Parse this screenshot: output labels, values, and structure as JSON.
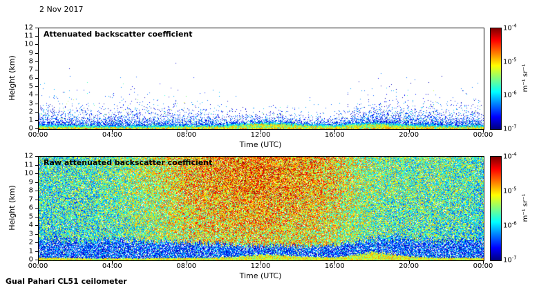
{
  "date_label": "2 Nov 2017",
  "footer_label": "Gual Pahari CL51 ceilometer",
  "colorbar": {
    "unit_label": "m⁻¹ sr⁻¹",
    "tick_base": "10",
    "tick_exponents": [
      "-4",
      "-5",
      "-6",
      "-7"
    ],
    "scale": "log",
    "range_max": "1e-4",
    "range_min": "1e-7",
    "colormap": "jet"
  },
  "chart_data": [
    {
      "type": "heatmap",
      "title": "Attenuated backscatter coefficient",
      "xlabel": "Time (UTC)",
      "ylabel": "Height (km)",
      "x_ticks": [
        "00:00",
        "04:00",
        "08:00",
        "12:00",
        "16:00",
        "20:00",
        "00:00"
      ],
      "y_ticks": [
        "12",
        "11",
        "10",
        "9",
        "8",
        "7",
        "6",
        "5",
        "4",
        "3",
        "2",
        "1",
        "0"
      ],
      "x_range_hours": [
        0,
        24
      ],
      "y_range_km": [
        0,
        12
      ],
      "value_units": "m^-1 sr^-1",
      "value_range": [
        "1e-7",
        "1e-4"
      ],
      "hours": [
        0,
        1,
        2,
        3,
        4,
        5,
        6,
        7,
        8,
        9,
        10,
        11,
        12,
        13,
        14,
        15,
        16,
        17,
        18,
        19,
        20,
        21,
        22,
        23,
        24
      ],
      "aerosol_speckle_top_km": [
        2.2,
        2.1,
        2.0,
        2.0,
        2.1,
        2.0,
        2.0,
        2.1,
        2.0,
        1.8,
        1.5,
        1.3,
        1.2,
        1.3,
        1.2,
        1.2,
        1.3,
        1.8,
        2.2,
        2.3,
        2.2,
        2.1,
        2.0,
        2.1,
        2.1
      ],
      "surface_layer_top_km": [
        0.3,
        0.3,
        0.28,
        0.25,
        0.25,
        0.25,
        0.25,
        0.28,
        0.3,
        0.3,
        0.35,
        0.5,
        0.65,
        0.6,
        0.45,
        0.38,
        0.35,
        0.5,
        0.6,
        0.5,
        0.4,
        0.35,
        0.3,
        0.3,
        0.3
      ]
    },
    {
      "type": "heatmap",
      "title": "Raw attenuated backscatter coefficient",
      "xlabel": "Time (UTC)",
      "ylabel": "Height (km)",
      "x_ticks": [
        "00:00",
        "04:00",
        "08:00",
        "12:00",
        "16:00",
        "20:00",
        "00:00"
      ],
      "y_ticks": [
        "12",
        "11",
        "10",
        "9",
        "8",
        "7",
        "6",
        "5",
        "4",
        "3",
        "2",
        "1",
        "0"
      ],
      "x_range_hours": [
        0,
        24
      ],
      "y_range_km": [
        0,
        12
      ],
      "value_units": "m^-1 sr^-1",
      "value_range": [
        "1e-7",
        "1e-4"
      ],
      "hours": [
        0,
        1,
        2,
        3,
        4,
        5,
        6,
        7,
        8,
        9,
        10,
        11,
        12,
        13,
        14,
        15,
        16,
        17,
        18,
        19,
        20,
        21,
        22,
        23,
        24
      ],
      "noise_intensity_by_hour": [
        0.3,
        0.3,
        0.32,
        0.35,
        0.4,
        0.5,
        0.6,
        0.7,
        0.8,
        0.88,
        0.92,
        0.95,
        0.95,
        0.93,
        0.9,
        0.85,
        0.75,
        0.6,
        0.5,
        0.42,
        0.4,
        0.42,
        0.38,
        0.33,
        0.3
      ],
      "boundary_layer_top_km": [
        2.3,
        2.3,
        2.2,
        2.2,
        2.3,
        2.2,
        2.1,
        2.1,
        2.0,
        1.9,
        1.8,
        1.7,
        1.6,
        1.6,
        1.6,
        1.6,
        1.7,
        2.0,
        2.4,
        2.5,
        2.4,
        2.3,
        2.2,
        2.3,
        2.3
      ],
      "surface_layer_top_km": [
        0.3,
        0.3,
        0.28,
        0.25,
        0.25,
        0.25,
        0.25,
        0.3,
        0.3,
        0.3,
        0.35,
        0.5,
        0.65,
        0.6,
        0.45,
        0.4,
        0.35,
        0.6,
        0.9,
        0.7,
        0.45,
        0.35,
        0.3,
        0.3,
        0.3
      ]
    }
  ]
}
